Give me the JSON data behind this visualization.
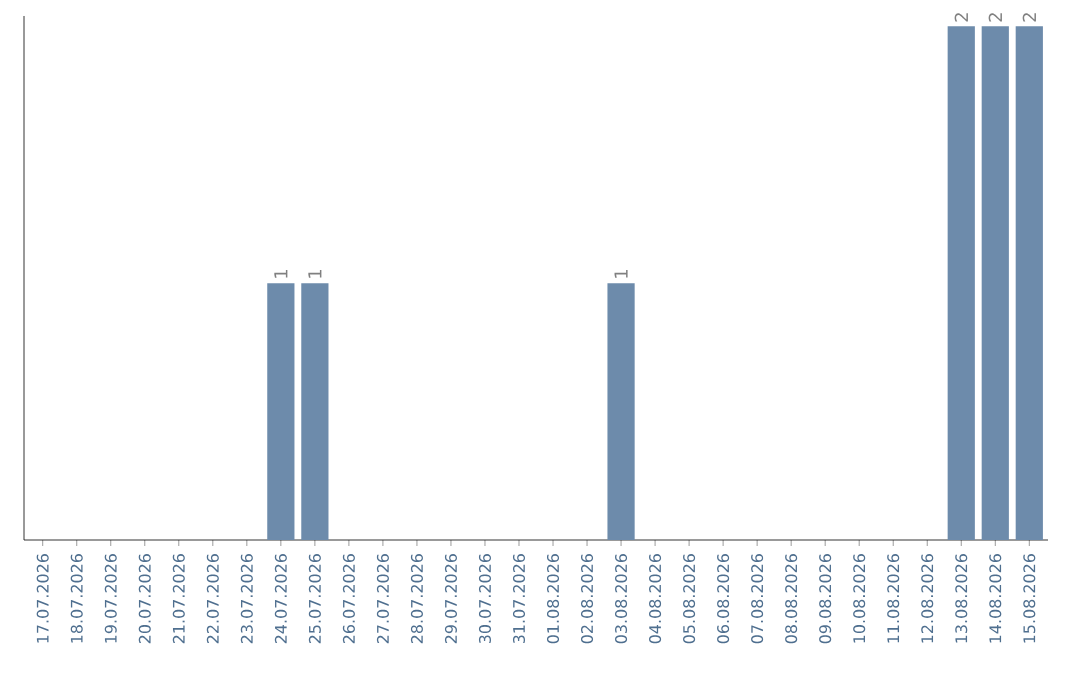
{
  "chart_data": {
    "type": "bar",
    "color": "#6d8bab",
    "categories": [
      "17.07.2026",
      "18.07.2026",
      "19.07.2026",
      "20.07.2026",
      "21.07.2026",
      "22.07.2026",
      "23.07.2026",
      "24.07.2026",
      "25.07.2026",
      "26.07.2026",
      "27.07.2026",
      "28.07.2026",
      "29.07.2026",
      "30.07.2026",
      "31.07.2026",
      "01.08.2026",
      "02.08.2026",
      "03.08.2026",
      "04.08.2026",
      "05.08.2026",
      "06.08.2026",
      "07.08.2026",
      "08.08.2026",
      "09.08.2026",
      "10.08.2026",
      "11.08.2026",
      "12.08.2026",
      "13.08.2026",
      "14.08.2026",
      "15.08.2026"
    ],
    "values": [
      0,
      0,
      0,
      0,
      0,
      0,
      0,
      1,
      1,
      0,
      0,
      0,
      0,
      0,
      0,
      0,
      0,
      1,
      0,
      0,
      0,
      0,
      0,
      0,
      0,
      0,
      0,
      2,
      2,
      2
    ],
    "value_labels": [
      null,
      null,
      null,
      null,
      null,
      null,
      null,
      "1",
      "1",
      null,
      null,
      null,
      null,
      null,
      null,
      null,
      null,
      "1",
      null,
      null,
      null,
      null,
      null,
      null,
      null,
      null,
      null,
      "2",
      "2",
      "2"
    ],
    "tick_labels": "x"
  }
}
